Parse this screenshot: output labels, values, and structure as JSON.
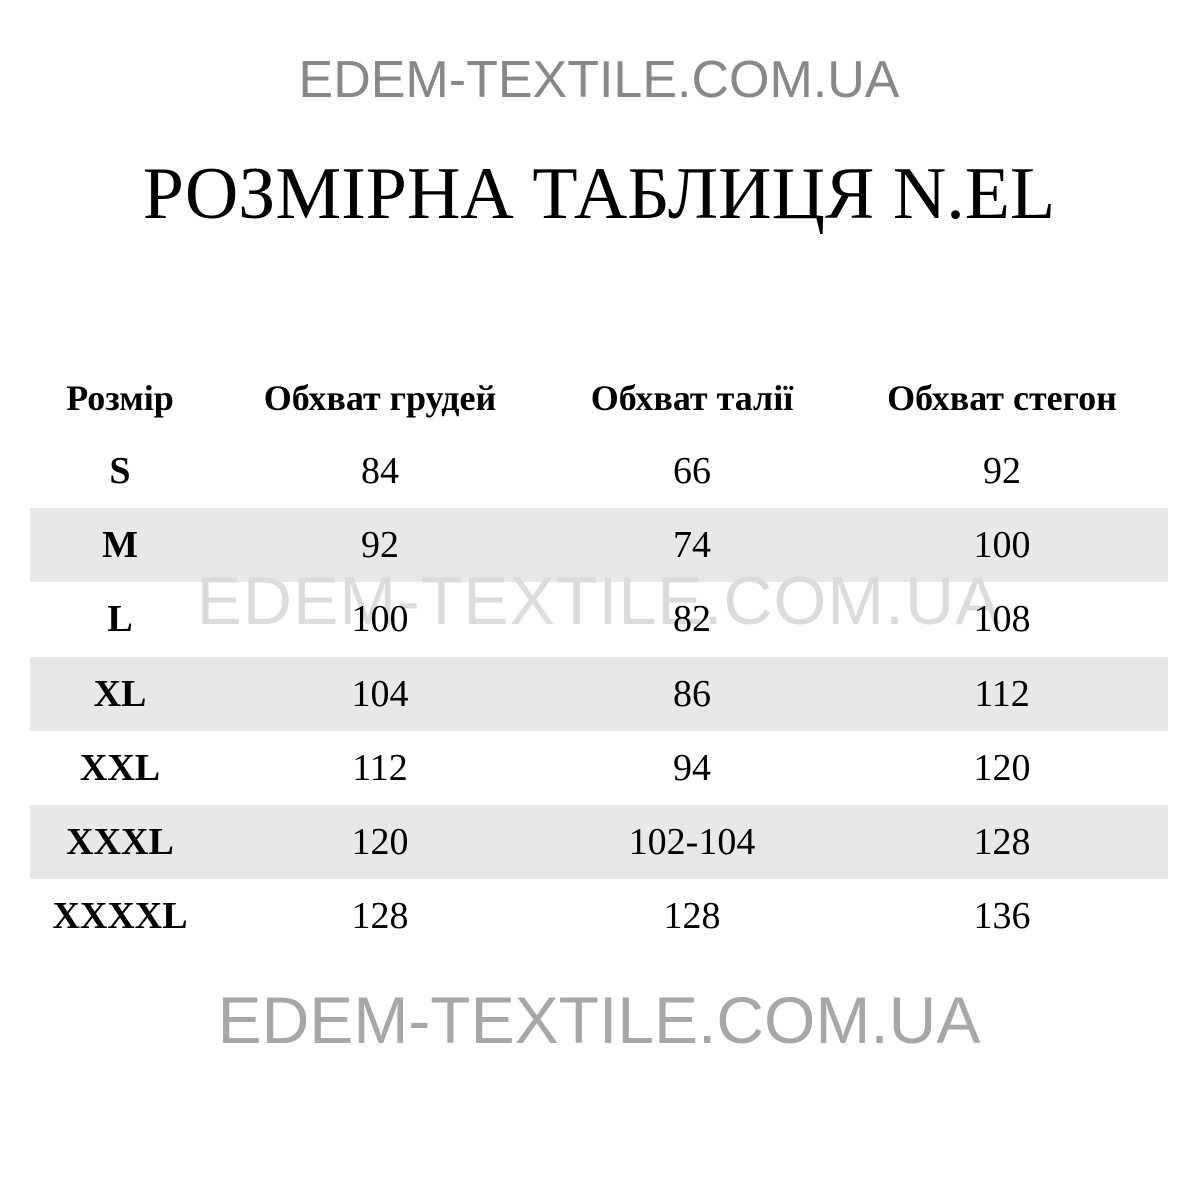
{
  "watermark": "EDEM-TEXTILE.COM.UA",
  "title": "РОЗМІРНА ТАБЛИЦЯ N.EL",
  "table": {
    "headers": [
      "Розмір",
      "Обхват грудей",
      "Обхват талії",
      "Обхват стегон"
    ],
    "rows": [
      [
        "S",
        "84",
        "66",
        "92"
      ],
      [
        "M",
        "92",
        "74",
        "100"
      ],
      [
        "L",
        "100",
        "82",
        "108"
      ],
      [
        "XL",
        "104",
        "86",
        "112"
      ],
      [
        "XXL",
        "112",
        "94",
        "120"
      ],
      [
        "XXXL",
        "120",
        "102-104",
        "128"
      ],
      [
        "XXXXL",
        "128",
        "128",
        "136"
      ]
    ]
  },
  "colors": {
    "stripe": "#e8e8e8",
    "watermark_top": "#8c8787",
    "watermark_mid": "#dcdcdc",
    "watermark_bottom": "#a9a6a6"
  }
}
